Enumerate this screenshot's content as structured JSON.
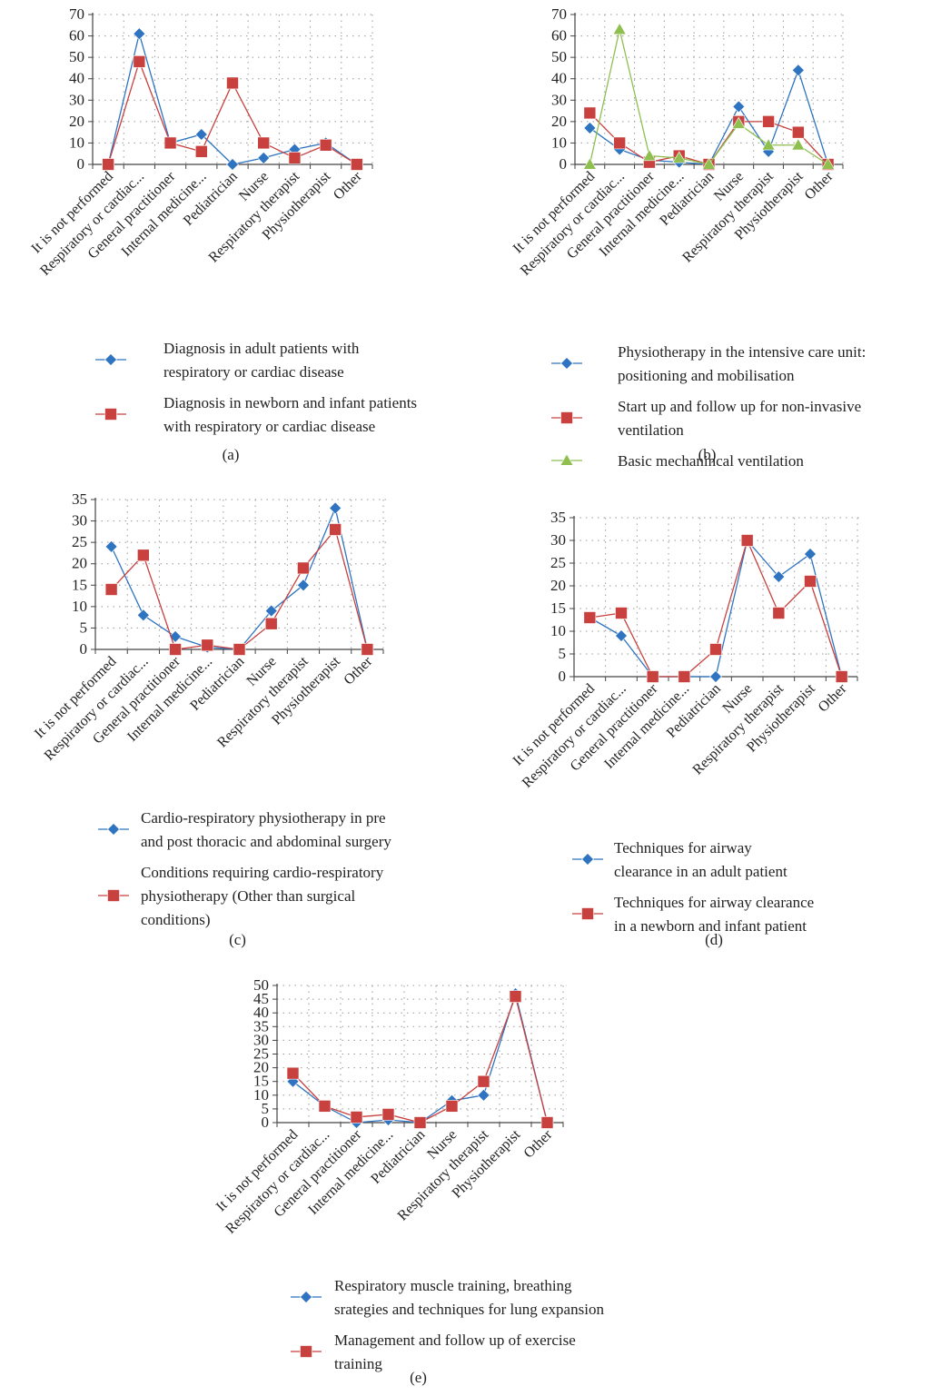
{
  "categories": [
    "It is not performed",
    "Respiratory or cardiac...",
    "General practitioner",
    "Internal medicine...",
    "Pediatrician",
    "Nurse",
    "Respiratory therapist",
    "Physiotherapist",
    "Other"
  ],
  "colors": {
    "blue": "#2f74c0",
    "red": "#c8413f",
    "green": "#8fbf4f"
  },
  "chart_data": [
    {
      "id": "a",
      "caption": "(a)",
      "type": "line",
      "ylim": [
        0,
        70
      ],
      "yticks": [
        0,
        10,
        20,
        30,
        40,
        50,
        60,
        70
      ],
      "categories": [
        "It is not performed",
        "Respiratory or cardiac...",
        "General practitioner",
        "Internal medicine...",
        "Pediatrician",
        "Nurse",
        "Respiratory therapist",
        "Physiotherapist",
        "Other"
      ],
      "series": [
        {
          "name": "Diagnosis in adult patients with respiratory or cardiac disease",
          "legend_lines": [
            "Diagnosis in adult patients with",
            "respiratory or cardiac disease"
          ],
          "color": "#2f74c0",
          "marker": "diamond",
          "values": [
            0,
            61,
            10,
            14,
            0,
            3,
            7,
            10,
            0
          ]
        },
        {
          "name": "Diagnosis in newborn and infant patients with respiratory or cardiac disease",
          "legend_lines": [
            "Diagnosis in newborn and infant patients",
            "with respiratory or cardiac disease"
          ],
          "color": "#c8413f",
          "marker": "square",
          "values": [
            0,
            48,
            10,
            6,
            38,
            10,
            3,
            9,
            0
          ]
        }
      ]
    },
    {
      "id": "b",
      "caption": "(b)",
      "type": "line",
      "ylim": [
        0,
        70
      ],
      "yticks": [
        0,
        10,
        20,
        30,
        40,
        50,
        60,
        70
      ],
      "categories": [
        "It is not performed",
        "Respiratory or cardiac...",
        "General practitioner",
        "Internal medicine...",
        "Pediatrician",
        "Nurse",
        "Respiratory therapist",
        "Physiotherapist",
        "Other"
      ],
      "series": [
        {
          "name": "Physiotherapy in the intensive care unit: positioning and mobilisation",
          "legend_lines": [
            "Physiotherapy in the intensive care unit:",
            "positioning and mobilisation"
          ],
          "color": "#2f74c0",
          "marker": "diamond",
          "values": [
            17,
            7,
            2,
            1,
            0,
            27,
            6,
            44,
            0
          ]
        },
        {
          "name": "Start up and follow up for non-invasive ventilation",
          "legend_lines": [
            "Start up and follow up for non-invasive",
            "ventilation"
          ],
          "color": "#c8413f",
          "marker": "square",
          "values": [
            24,
            10,
            1,
            4,
            0,
            20,
            20,
            15,
            0
          ]
        },
        {
          "name": "Basic mechanincal ventilation",
          "legend_lines": [
            "Basic mechanincal ventilation"
          ],
          "color": "#8fbf4f",
          "marker": "triangle",
          "values": [
            0,
            63,
            4,
            3,
            0,
            19,
            9,
            9,
            0
          ]
        }
      ]
    },
    {
      "id": "c",
      "caption": "(c)",
      "type": "line",
      "ylim": [
        0,
        35
      ],
      "yticks": [
        0,
        5,
        10,
        15,
        20,
        25,
        30,
        35
      ],
      "categories": [
        "It is not performed",
        "Respiratory or cardiac...",
        "General practitioner",
        "Internal medicine...",
        "Pediatrician",
        "Nurse",
        "Respiratory therapist",
        "Physiotherapist",
        "Other"
      ],
      "series": [
        {
          "name": "Cardio-respiratory physiotherapy in pre and post thoracic and abdominal surgery",
          "legend_lines": [
            "Cardio-respiratory physiotherapy in pre",
            "and post thoracic and abdominal surgery"
          ],
          "color": "#2f74c0",
          "marker": "diamond",
          "values": [
            24,
            8,
            3,
            0.5,
            0,
            9,
            15,
            33,
            0
          ]
        },
        {
          "name": "Conditions requiring cardio-respiratory physiotherapy (Other than surgical conditions)",
          "legend_lines": [
            "Conditions requiring cardio-respiratory",
            "physiotherapy (Other than surgical",
            "conditions)"
          ],
          "color": "#c8413f",
          "marker": "square",
          "values": [
            14,
            22,
            0,
            1,
            0,
            6,
            19,
            28,
            0
          ]
        }
      ]
    },
    {
      "id": "d",
      "caption": "(d)",
      "type": "line",
      "ylim": [
        0,
        35
      ],
      "yticks": [
        0,
        5,
        10,
        15,
        20,
        25,
        30,
        35
      ],
      "categories": [
        "It is not performed",
        "Respiratory or cardiac...",
        "General practitioner",
        "Internal medicine...",
        "Pediatrician",
        "Nurse",
        "Respiratory therapist",
        "Physiotherapist",
        "Other"
      ],
      "series": [
        {
          "name": "Techniques for airway clearance in an adult patient",
          "legend_lines": [
            "Techniques for airway",
            "clearance in an adult patient"
          ],
          "color": "#2f74c0",
          "marker": "diamond",
          "values": [
            13,
            9,
            0,
            0,
            0,
            30,
            22,
            27,
            0
          ]
        },
        {
          "name": "Techniques for airway clearance in a newborn and infant patient",
          "legend_lines": [
            "Techniques for airway clearance",
            "in a newborn and infant patient"
          ],
          "color": "#c8413f",
          "marker": "square",
          "values": [
            13,
            14,
            0,
            0,
            6,
            30,
            14,
            21,
            0
          ]
        }
      ]
    },
    {
      "id": "e",
      "caption": "(e)",
      "type": "line",
      "ylim": [
        0,
        50
      ],
      "yticks": [
        0,
        5,
        10,
        15,
        20,
        25,
        30,
        35,
        40,
        45,
        50
      ],
      "categories": [
        "It is not performed",
        "Respiratory or cardiac...",
        "General practitioner",
        "Internal medicine...",
        "Pediatrician",
        "Nurse",
        "Respiratory therapist",
        "Physiotherapist",
        "Other"
      ],
      "series": [
        {
          "name": "Respiratory muscle training, breathing srategies and techniques for lung expansion",
          "legend_lines": [
            "Respiratory muscle training, breathing",
            "srategies and techniques for lung expansion"
          ],
          "color": "#2f74c0",
          "marker": "diamond",
          "values": [
            15,
            6,
            0,
            1,
            0,
            8,
            10,
            47,
            0
          ]
        },
        {
          "name": "Management and follow up of exercise training",
          "legend_lines": [
            "Management and follow up of exercise",
            "training"
          ],
          "color": "#c8413f",
          "marker": "square",
          "values": [
            18,
            6,
            2,
            3,
            0,
            6,
            15,
            46,
            0
          ]
        }
      ]
    }
  ]
}
